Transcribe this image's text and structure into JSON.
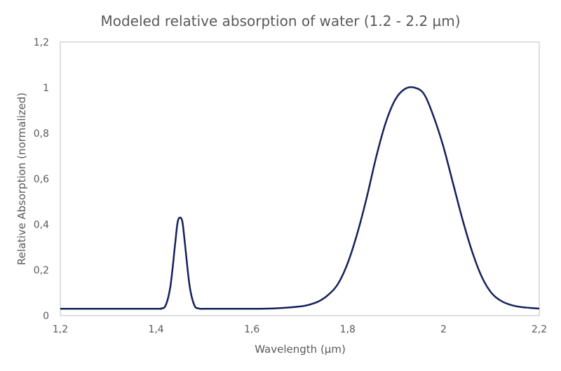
{
  "chart_data": {
    "type": "line",
    "title": "Modeled relative absorption of water (1.2 - 2.2 µm)",
    "xlabel": "Wavelength  (µm)",
    "ylabel": "Relative Absorption (normalized)",
    "xlim": [
      1.2,
      2.2
    ],
    "ylim": [
      0,
      1.2
    ],
    "grid": false,
    "legend": "none",
    "x_ticks": [
      {
        "value": 1.2,
        "label": "1,2"
      },
      {
        "value": 1.4,
        "label": "1,4"
      },
      {
        "value": 1.6,
        "label": "1,6"
      },
      {
        "value": 1.8,
        "label": "1,8"
      },
      {
        "value": 2.0,
        "label": "2"
      },
      {
        "value": 2.2,
        "label": "2,2"
      }
    ],
    "y_ticks": [
      {
        "value": 0,
        "label": "0"
      },
      {
        "value": 0.2,
        "label": "0,2"
      },
      {
        "value": 0.4,
        "label": "0,4"
      },
      {
        "value": 0.6,
        "label": "0,6"
      },
      {
        "value": 0.8,
        "label": "0,8"
      },
      {
        "value": 1.0,
        "label": "1"
      },
      {
        "value": 1.2,
        "label": "1,2"
      }
    ],
    "colors": {
      "line": "#14215a",
      "axis": "#bfbfbf",
      "text": "#595959"
    },
    "series": [
      {
        "x": [
          1.2,
          1.3,
          1.4,
          1.41,
          1.42,
          1.43,
          1.44,
          1.445,
          1.45,
          1.455,
          1.46,
          1.47,
          1.48,
          1.49,
          1.5,
          1.55,
          1.6,
          1.65,
          1.7,
          1.72,
          1.74,
          1.76,
          1.78,
          1.8,
          1.82,
          1.84,
          1.86,
          1.88,
          1.9,
          1.92,
          1.94,
          1.96,
          1.98,
          2.0,
          2.02,
          2.04,
          2.06,
          2.08,
          2.1,
          2.12,
          2.14,
          2.16,
          2.18,
          2.2
        ],
        "y": [
          0.03,
          0.03,
          0.03,
          0.031,
          0.045,
          0.13,
          0.32,
          0.41,
          0.43,
          0.41,
          0.32,
          0.13,
          0.045,
          0.031,
          0.03,
          0.03,
          0.03,
          0.032,
          0.04,
          0.048,
          0.063,
          0.092,
          0.14,
          0.23,
          0.36,
          0.52,
          0.7,
          0.85,
          0.95,
          0.995,
          1.0,
          0.97,
          0.87,
          0.74,
          0.58,
          0.42,
          0.28,
          0.17,
          0.1,
          0.065,
          0.047,
          0.038,
          0.034,
          0.031
        ]
      }
    ]
  }
}
